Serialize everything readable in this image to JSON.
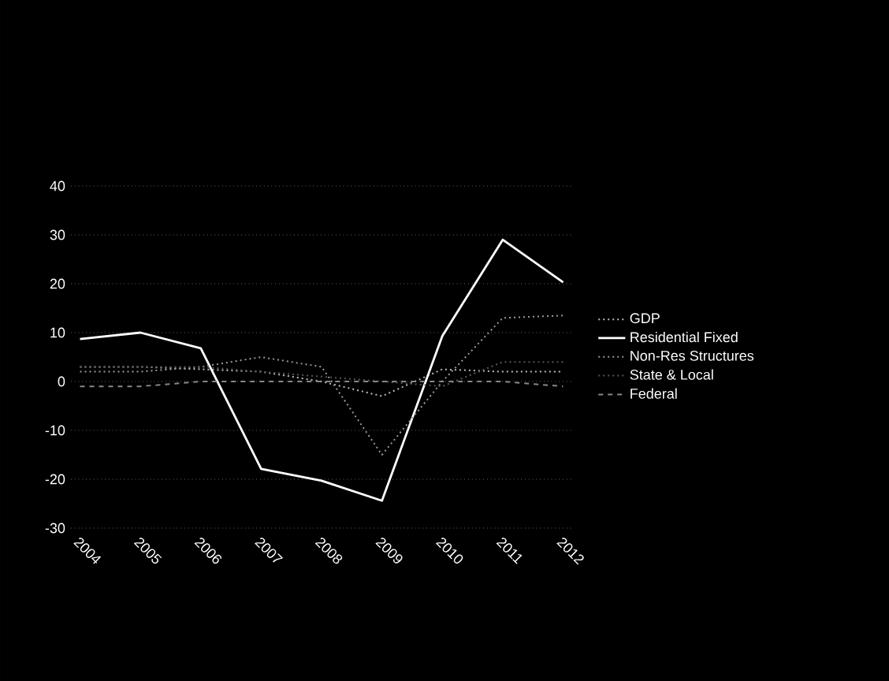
{
  "chart_data": {
    "type": "line",
    "categories": [
      "2004",
      "2005",
      "2006",
      "2007",
      "2008",
      "2009",
      "2010",
      "2011",
      "2012"
    ],
    "series": [
      {
        "name": "GDP",
        "color": "#bbbbbb",
        "line_style": "dotted",
        "values": [
          3,
          3,
          2.5,
          2,
          0,
          -3,
          2.5,
          2,
          2
        ]
      },
      {
        "name": "Residential Fixed",
        "color": "#ffffff",
        "line_style": "solid",
        "values": [
          8.7,
          10,
          6.8,
          -17.9,
          -20.3,
          -24.4,
          9.3,
          29,
          20.3
        ]
      },
      {
        "name": "Non-Res Structures",
        "color": "#999999",
        "line_style": "dotted",
        "values": [
          2,
          2,
          3,
          5,
          3,
          -15,
          0,
          13,
          13.5
        ]
      },
      {
        "name": "State & Local",
        "color": "#555555",
        "line_style": "dotted",
        "values": [
          3,
          3,
          3,
          2,
          1,
          0,
          -1,
          4,
          4
        ]
      },
      {
        "name": "Federal",
        "color": "#888888",
        "line_style": "dashed",
        "values": [
          -1,
          -1,
          0,
          0,
          0,
          0,
          0,
          0,
          -1
        ]
      }
    ],
    "ylim": [
      -30,
      40
    ],
    "yticks": [
      -30,
      -20,
      -10,
      0,
      10,
      20,
      30,
      40
    ],
    "grid": "y",
    "legend": "right"
  }
}
